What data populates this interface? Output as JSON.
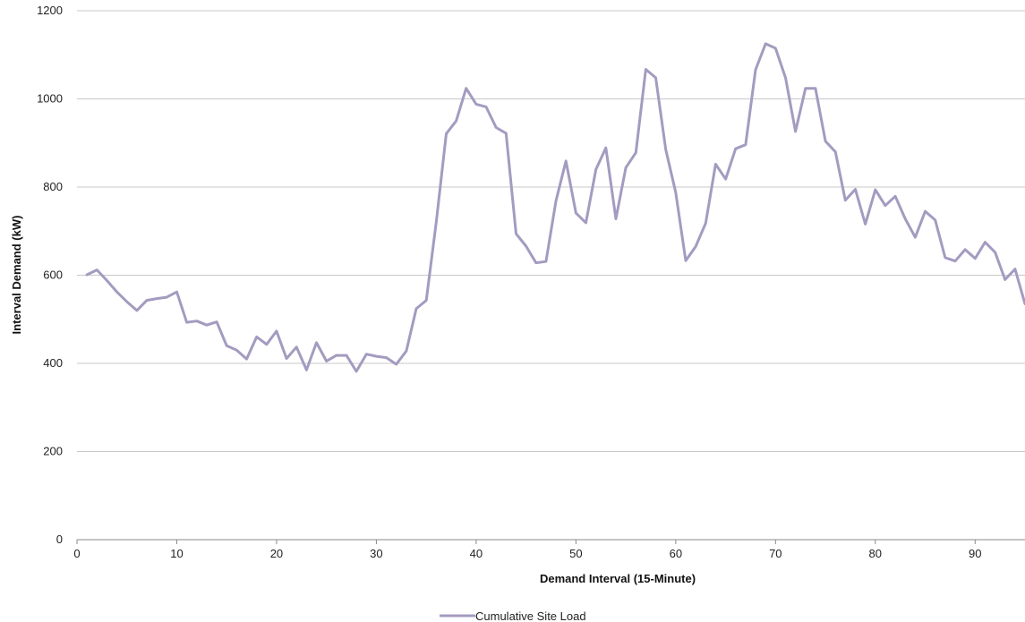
{
  "chart_data": {
    "type": "line",
    "title": "",
    "xlabel": "Demand Interval (15-Minute)",
    "ylabel": "Interval Demand (kW)",
    "xlim": [
      0,
      95
    ],
    "ylim": [
      0,
      1200
    ],
    "xticks": [
      0,
      10,
      20,
      30,
      40,
      50,
      60,
      70,
      80,
      90
    ],
    "yticks": [
      0,
      200,
      400,
      600,
      800,
      1000,
      1200
    ],
    "grid": "horizontal",
    "legend_position": "bottom",
    "series": [
      {
        "name": "Cumulative Site Load",
        "color": "#A49BC0",
        "x": [
          1,
          2,
          3,
          4,
          5,
          6,
          7,
          8,
          9,
          10,
          11,
          12,
          13,
          14,
          15,
          16,
          17,
          18,
          19,
          20,
          21,
          22,
          23,
          24,
          25,
          26,
          27,
          28,
          29,
          30,
          31,
          32,
          33,
          34,
          35,
          36,
          37,
          38,
          39,
          40,
          41,
          42,
          43,
          44,
          45,
          46,
          47,
          48,
          49,
          50,
          51,
          52,
          53,
          54,
          55,
          56,
          57,
          58,
          59,
          60,
          61,
          62,
          63,
          64,
          65,
          66,
          67,
          68,
          69,
          70,
          71,
          72,
          73,
          74,
          75,
          76,
          77,
          78,
          79,
          80,
          81,
          82,
          83,
          84,
          85,
          86,
          87,
          88,
          89,
          90,
          91,
          92,
          93,
          94,
          95
        ],
        "values": [
          601,
          612,
          588,
          562,
          540,
          520,
          543,
          547,
          550,
          562,
          493,
          496,
          487,
          494,
          440,
          430,
          410,
          460,
          443,
          473,
          411,
          437,
          385,
          447,
          405,
          418,
          418,
          382,
          421,
          416,
          413,
          398,
          428,
          524,
          543,
          720,
          921,
          950,
          1024,
          988,
          982,
          935,
          922,
          694,
          666,
          628,
          631,
          769,
          859,
          741,
          719,
          840,
          889,
          728,
          844,
          878,
          1067,
          1048,
          885,
          788,
          633,
          665,
          718,
          852,
          818,
          887,
          896,
          1066,
          1125,
          1115,
          1048,
          926,
          1024,
          1024,
          904,
          880,
          770,
          795,
          716,
          794,
          758,
          779,
          728,
          686,
          745,
          725,
          640,
          632,
          658,
          638,
          675,
          652,
          590,
          614,
          535
        ]
      }
    ]
  }
}
